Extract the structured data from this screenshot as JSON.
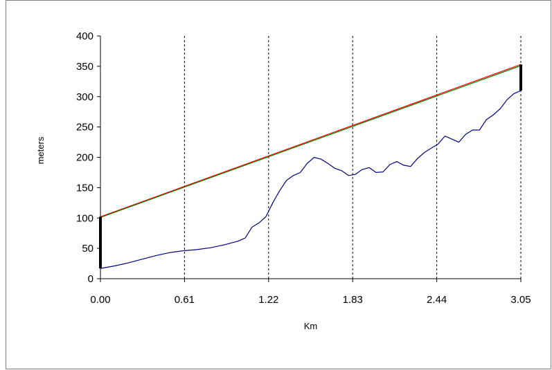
{
  "chart_data": {
    "type": "line",
    "xlabel": "Km",
    "ylabel": "meters",
    "xlim": [
      0,
      3.05
    ],
    "ylim": [
      0,
      400
    ],
    "x_ticks": [
      "0.00",
      "0.61",
      "1.22",
      "1.83",
      "2.44",
      "3.05"
    ],
    "y_ticks": [
      "0",
      "50",
      "100",
      "150",
      "200",
      "250",
      "300",
      "350",
      "400"
    ],
    "grid": "vertical-dashed",
    "colors": {
      "terrain": "#000080",
      "sightline_a": "#ff0000",
      "sightline_b": "#008000",
      "markers": "#000000"
    },
    "series": [
      {
        "key": "sightline_a",
        "x": [
          0.0,
          3.05
        ],
        "y": [
          102,
          353
        ]
      },
      {
        "key": "sightline_b",
        "x": [
          0.0,
          3.05
        ],
        "y": [
          101,
          351
        ]
      },
      {
        "key": "terrain",
        "x": [
          0.0,
          0.1,
          0.2,
          0.3,
          0.4,
          0.5,
          0.6,
          0.7,
          0.8,
          0.9,
          1.0,
          1.05,
          1.1,
          1.15,
          1.2,
          1.25,
          1.3,
          1.35,
          1.4,
          1.45,
          1.5,
          1.55,
          1.6,
          1.65,
          1.7,
          1.75,
          1.8,
          1.85,
          1.9,
          1.95,
          2.0,
          2.05,
          2.1,
          2.15,
          2.2,
          2.25,
          2.3,
          2.35,
          2.4,
          2.45,
          2.5,
          2.55,
          2.6,
          2.65,
          2.7,
          2.75,
          2.8,
          2.85,
          2.9,
          2.95,
          3.0,
          3.05
        ],
        "y": [
          17,
          21,
          26,
          32,
          38,
          43,
          46,
          48,
          51,
          56,
          62,
          67,
          85,
          92,
          102,
          125,
          145,
          162,
          170,
          175,
          190,
          200,
          197,
          190,
          182,
          178,
          170,
          172,
          180,
          183,
          175,
          176,
          188,
          193,
          187,
          185,
          198,
          208,
          215,
          222,
          235,
          230,
          225,
          238,
          245,
          245,
          262,
          270,
          280,
          295,
          305,
          310
        ]
      }
    ],
    "markers": [
      {
        "x": 0.0,
        "y_from": 17,
        "y_to": 102
      },
      {
        "x": 3.05,
        "y_from": 310,
        "y_to": 353
      }
    ]
  }
}
